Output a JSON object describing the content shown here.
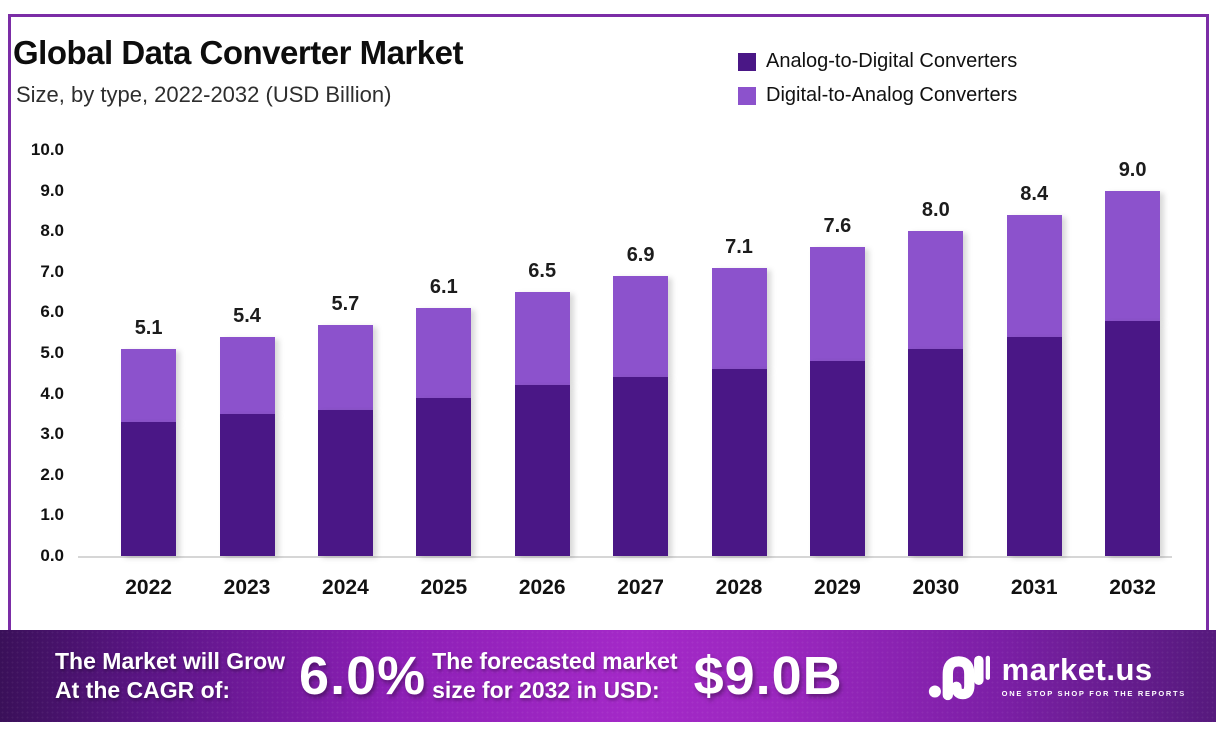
{
  "header": {
    "title": "Global Data Converter Market",
    "subtitle": "Size, by type, 2022-2032 (USD Billion)"
  },
  "legend": {
    "items": [
      {
        "label": "Analog-to-Digital Converters",
        "color": "#4A1786"
      },
      {
        "label": "Digital-to-Analog Converters",
        "color": "#8C52CC"
      }
    ]
  },
  "chart_data": {
    "type": "bar",
    "stacked": true,
    "title": "Global Data Converter Market",
    "subtitle": "Size, by type, 2022-2032 (USD Billion)",
    "unit": "USD Billion",
    "categories": [
      "2022",
      "2023",
      "2024",
      "2025",
      "2026",
      "2027",
      "2028",
      "2029",
      "2030",
      "2031",
      "2032"
    ],
    "series": [
      {
        "name": "Analog-to-Digital Converters",
        "color": "#4A1786",
        "values": [
          3.3,
          3.5,
          3.6,
          3.9,
          4.2,
          4.4,
          4.6,
          4.8,
          5.1,
          5.4,
          5.8
        ]
      },
      {
        "name": "Digital-to-Analog Converters",
        "color": "#8C52CC",
        "values": [
          1.8,
          1.9,
          2.1,
          2.2,
          2.3,
          2.5,
          2.5,
          2.8,
          2.9,
          3.0,
          3.2
        ]
      }
    ],
    "totals": [
      5.1,
      5.4,
      5.7,
      6.1,
      6.5,
      6.9,
      7.1,
      7.6,
      8.0,
      8.4,
      9.0
    ],
    "total_labels": [
      "5.1",
      "5.4",
      "5.7",
      "6.1",
      "6.5",
      "6.9",
      "7.1",
      "7.6",
      "8.0",
      "8.4",
      "9.0"
    ],
    "ylim": [
      0,
      10
    ],
    "yticks": [
      "0.0",
      "1.0",
      "2.0",
      "3.0",
      "4.0",
      "5.0",
      "6.0",
      "7.0",
      "8.0",
      "9.0",
      "10.0"
    ],
    "grid": false,
    "legend_position": "top-right"
  },
  "banner": {
    "left_line1": "The Market will Grow",
    "left_line2": "At the CAGR of:",
    "cagr": "6.0%",
    "mid_line1": "The forecasted market",
    "mid_line2": "size for 2032 in USD:",
    "forecast_value": "$9.0B",
    "brand_name": "market.us",
    "brand_tagline": "ONE STOP SHOP FOR THE REPORTS"
  },
  "colors": {
    "adc": "#4A1786",
    "dac": "#8C52CC",
    "frame_border": "#7b2da6",
    "banner_center": "#a429c8",
    "banner_edge": "#3a1059",
    "axis_line": "#d6d6d6",
    "text_dark": "#111111"
  }
}
